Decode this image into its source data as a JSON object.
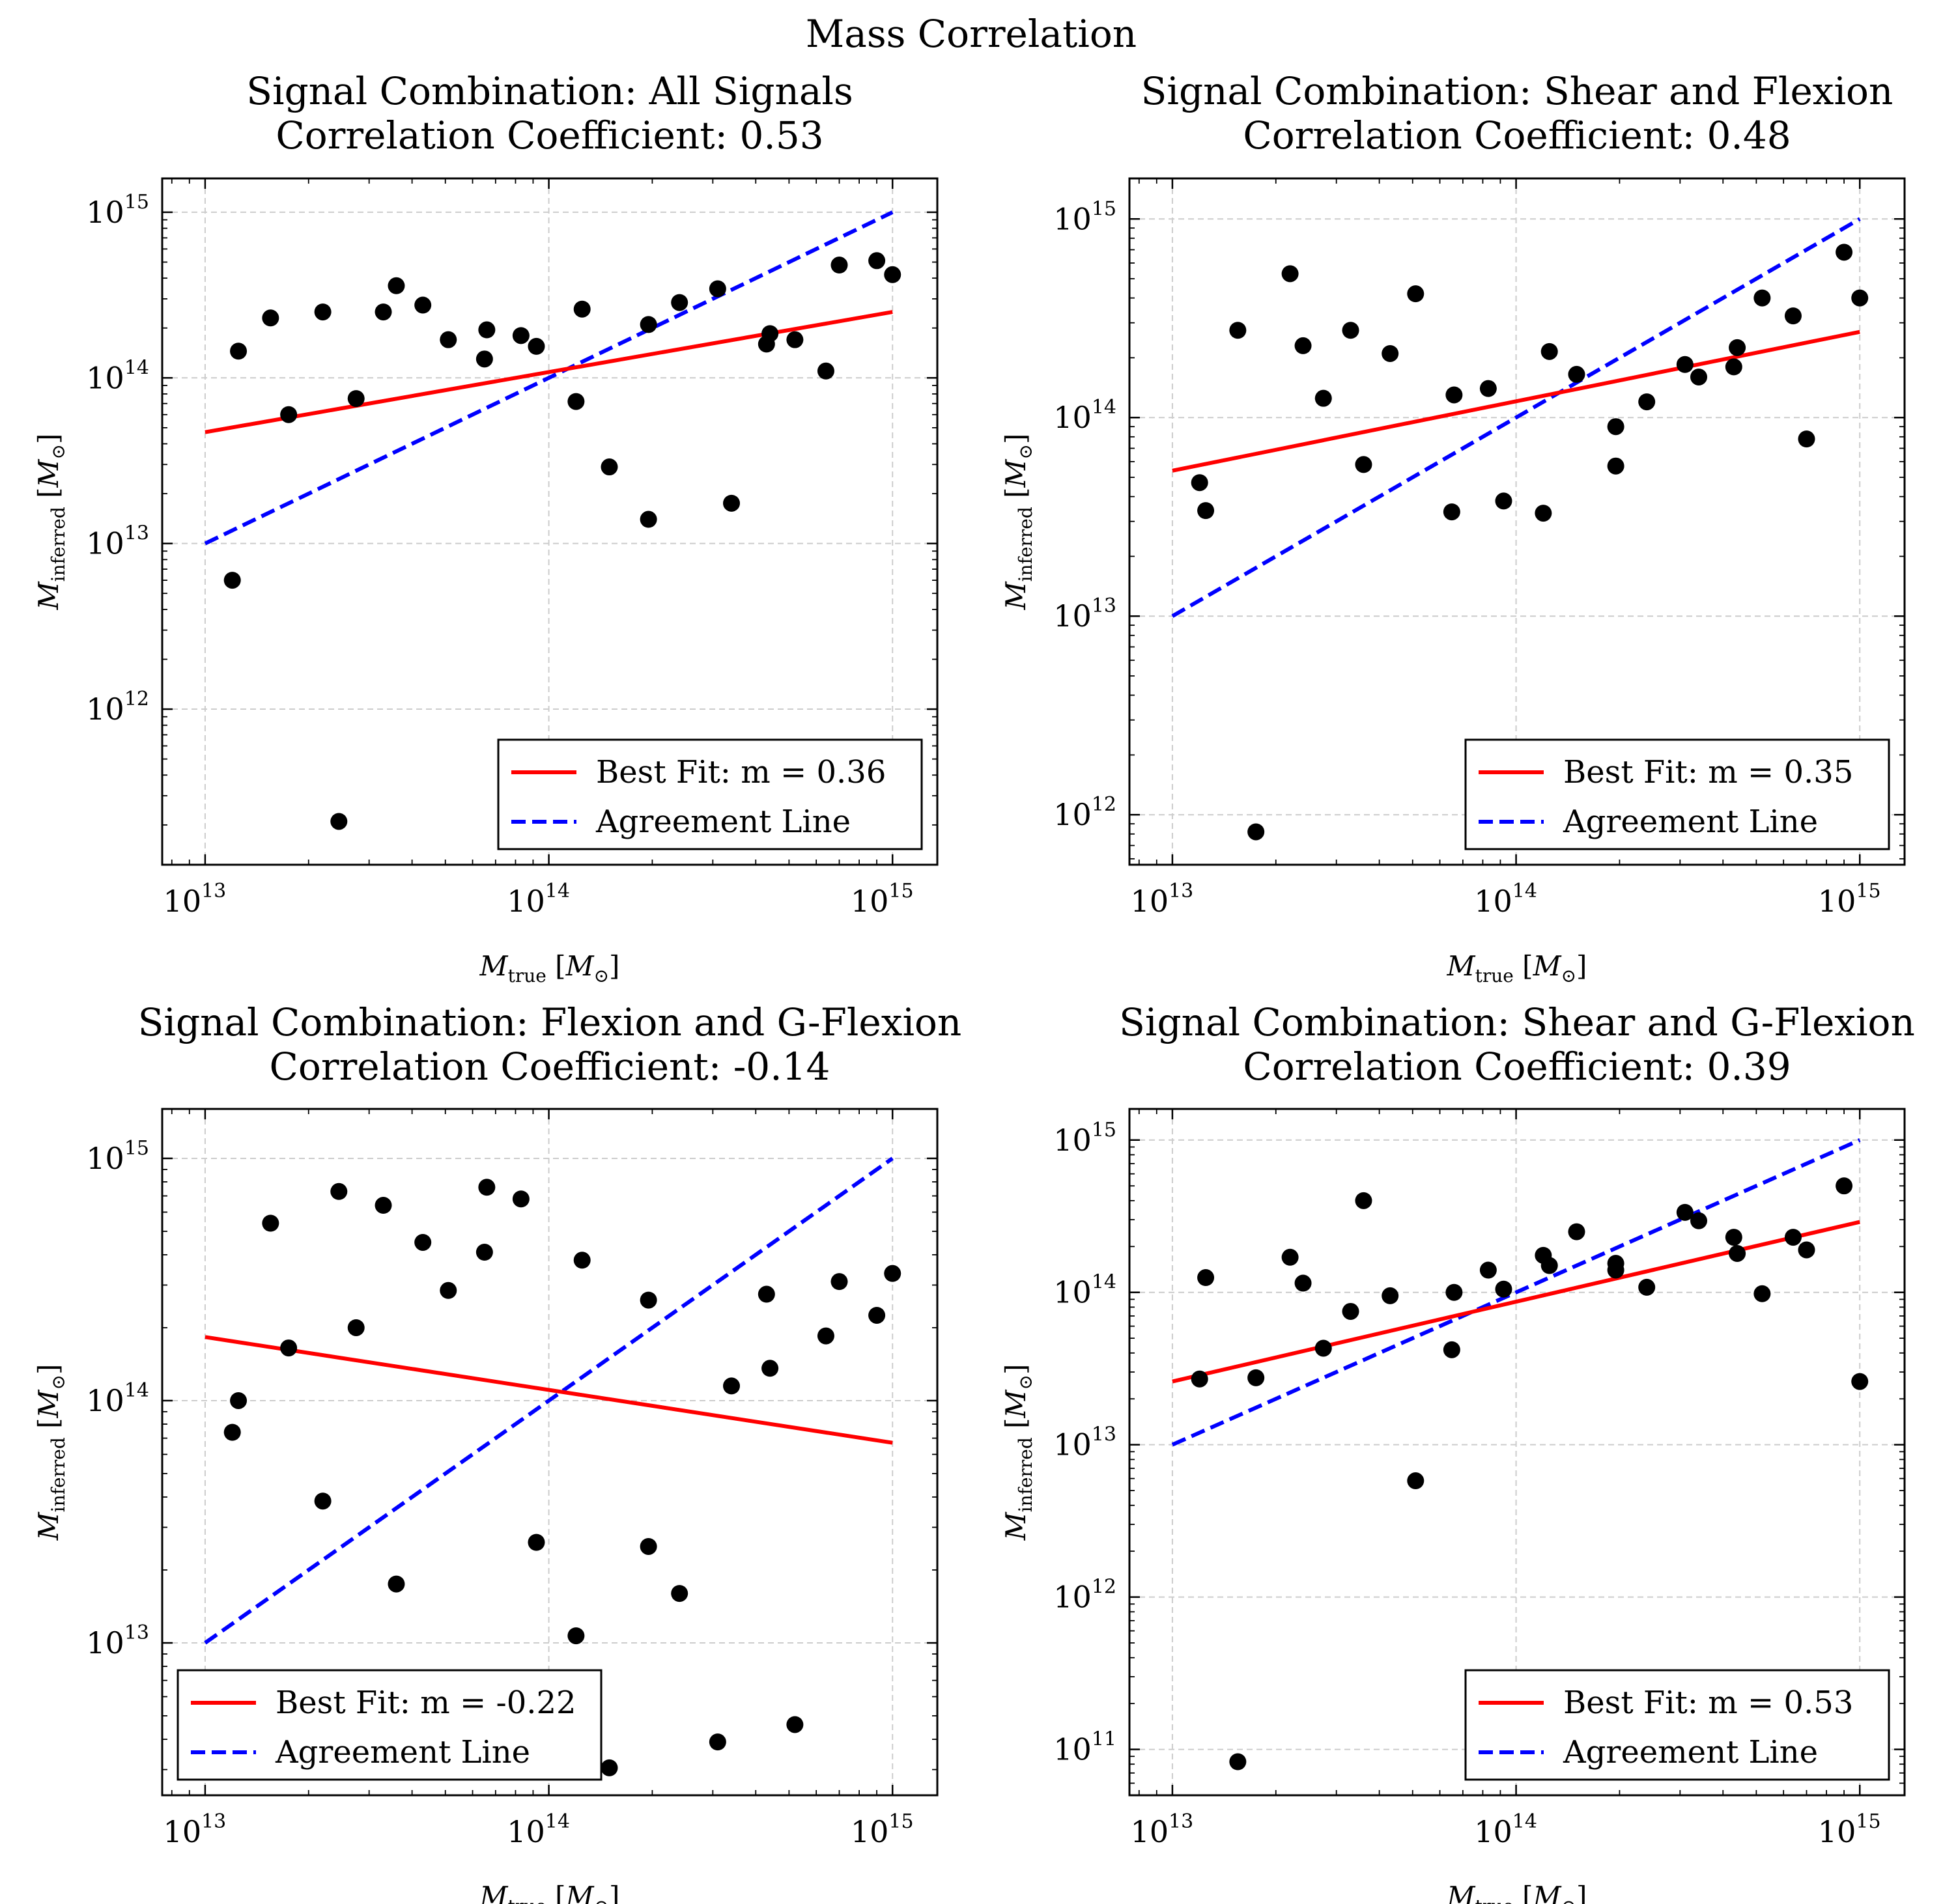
{
  "figure": {
    "title": "Mass Correlation"
  },
  "chart_data": [
    {
      "type": "scatter",
      "title": "Signal Combination: All Signals",
      "subtitle": "Correlation Coefficient: 0.53",
      "xlabel": "M_true [M_⊙]",
      "ylabel": "M_inferred [M_⊙]",
      "xscale": "log",
      "yscale": "log",
      "xlim": [
        7500000000000.0,
        1350000000000000.0
      ],
      "ylim": [
        115000000000.0,
        1600000000000000.0
      ],
      "xticks": [
        {
          "base": "10",
          "exp": "13"
        },
        {
          "base": "10",
          "exp": "14"
        },
        {
          "base": "10",
          "exp": "15"
        }
      ],
      "yticks": [
        {
          "base": "10",
          "exp": "12"
        },
        {
          "base": "10",
          "exp": "13"
        },
        {
          "base": "10",
          "exp": "14"
        },
        {
          "base": "10",
          "exp": "15"
        }
      ],
      "grid": true,
      "legend_position": "lower-right",
      "legend": [
        {
          "label": "Best Fit: m = 0.36",
          "color": "#ff0000",
          "style": "solid"
        },
        {
          "label": "Agreement Line",
          "color": "#0000ff",
          "style": "dashed"
        }
      ],
      "fit_line": {
        "x": [
          10000000000000.0,
          1000000000000000.0
        ],
        "y": [
          47000000000000.0,
          250000000000000.0
        ]
      },
      "agreement_line": {
        "x": [
          10000000000000.0,
          1000000000000000.0
        ],
        "y": [
          10000000000000.0,
          1000000000000000.0
        ]
      },
      "points": [
        [
          12000000000000.0,
          6000000000000.0
        ],
        [
          12500000000000.0,
          145000000000000.0
        ],
        [
          15500000000000.0,
          230000000000000.0
        ],
        [
          17500000000000.0,
          60000000000000.0
        ],
        [
          22000000000000.0,
          250000000000000.0
        ],
        [
          24500000000000.0,
          210000000000.0
        ],
        [
          27500000000000.0,
          75000000000000.0
        ],
        [
          33000000000000.0,
          250000000000000.0
        ],
        [
          36000000000000.0,
          360000000000000.0
        ],
        [
          43000000000000.0,
          275000000000000.0
        ],
        [
          51000000000000.0,
          170000000000000.0
        ],
        [
          65000000000000.0,
          130000000000000.0
        ],
        [
          66000000000000.0,
          195000000000000.0
        ],
        [
          83000000000000.0,
          180000000000000.0
        ],
        [
          92000000000000.0,
          155000000000000.0
        ],
        [
          120000000000000.0,
          72000000000000.0
        ],
        [
          125000000000000.0,
          260000000000000.0
        ],
        [
          150000000000000.0,
          29000000000000.0
        ],
        [
          195000000000000.0,
          14000000000000.0
        ],
        [
          195000000000000.0,
          210000000000000.0
        ],
        [
          240000000000000.0,
          285000000000000.0
        ],
        [
          310000000000000.0,
          345000000000000.0
        ],
        [
          340000000000000.0,
          17500000000000.0
        ],
        [
          430000000000000.0,
          160000000000000.0
        ],
        [
          440000000000000.0,
          185000000000000.0
        ],
        [
          520000000000000.0,
          170000000000000.0
        ],
        [
          640000000000000.0,
          110000000000000.0
        ],
        [
          700000000000000.0,
          480000000000000.0
        ],
        [
          900000000000000.0,
          510000000000000.0
        ],
        [
          1000000000000000.0,
          420000000000000.0
        ]
      ]
    },
    {
      "type": "scatter",
      "title": "Signal Combination: Shear and Flexion",
      "subtitle": "Correlation Coefficient: 0.48",
      "xlabel": "M_true [M_⊙]",
      "ylabel": "M_inferred [M_⊙]",
      "xscale": "log",
      "yscale": "log",
      "xlim": [
        7500000000000.0,
        1350000000000000.0
      ],
      "ylim": [
        560000000000.0,
        1600000000000000.0
      ],
      "xticks": [
        {
          "base": "10",
          "exp": "13"
        },
        {
          "base": "10",
          "exp": "14"
        },
        {
          "base": "10",
          "exp": "15"
        }
      ],
      "yticks": [
        {
          "base": "10",
          "exp": "12"
        },
        {
          "base": "10",
          "exp": "13"
        },
        {
          "base": "10",
          "exp": "14"
        },
        {
          "base": "10",
          "exp": "15"
        }
      ],
      "grid": true,
      "legend_position": "lower-right",
      "legend": [
        {
          "label": "Best Fit: m = 0.35",
          "color": "#ff0000",
          "style": "solid"
        },
        {
          "label": "Agreement Line",
          "color": "#0000ff",
          "style": "dashed"
        }
      ],
      "fit_line": {
        "x": [
          10000000000000.0,
          1000000000000000.0
        ],
        "y": [
          54000000000000.0,
          270000000000000.0
        ]
      },
      "agreement_line": {
        "x": [
          10000000000000.0,
          1000000000000000.0
        ],
        "y": [
          10000000000000.0,
          1000000000000000.0
        ]
      },
      "points": [
        [
          12000000000000.0,
          47000000000000.0
        ],
        [
          12500000000000.0,
          34000000000000.0
        ],
        [
          15500000000000.0,
          275000000000000.0
        ],
        [
          17500000000000.0,
          820000000000.0
        ],
        [
          22000000000000.0,
          530000000000000.0
        ],
        [
          24000000000000.0,
          230000000000000.0
        ],
        [
          27500000000000.0,
          125000000000000.0
        ],
        [
          33000000000000.0,
          275000000000000.0
        ],
        [
          36000000000000.0,
          58000000000000.0
        ],
        [
          43000000000000.0,
          210000000000000.0
        ],
        [
          51000000000000.0,
          420000000000000.0
        ],
        [
          65000000000000.0,
          33500000000000.0
        ],
        [
          66000000000000.0,
          130000000000000.0
        ],
        [
          83000000000000.0,
          140000000000000.0
        ],
        [
          92000000000000.0,
          38000000000000.0
        ],
        [
          120000000000000.0,
          33000000000000.0
        ],
        [
          125000000000000.0,
          215000000000000.0
        ],
        [
          150000000000000.0,
          165000000000000.0
        ],
        [
          195000000000000.0,
          57000000000000.0
        ],
        [
          195000000000000.0,
          90000000000000.0
        ],
        [
          240000000000000.0,
          120000000000000.0
        ],
        [
          310000000000000.0,
          185000000000000.0
        ],
        [
          340000000000000.0,
          160000000000000.0
        ],
        [
          430000000000000.0,
          180000000000000.0
        ],
        [
          440000000000000.0,
          225000000000000.0
        ],
        [
          520000000000000.0,
          400000000000000.0
        ],
        [
          640000000000000.0,
          325000000000000.0
        ],
        [
          700000000000000.0,
          78000000000000.0
        ],
        [
          900000000000000.0,
          680000000000000.0
        ],
        [
          1000000000000000.0,
          400000000000000.0
        ]
      ]
    },
    {
      "type": "scatter",
      "title": "Signal Combination: Flexion and G-Flexion",
      "subtitle": "Correlation Coefficient: -0.14",
      "xlabel": "M_true [M_⊙]",
      "ylabel": "M_inferred [M_⊙]",
      "xscale": "log",
      "yscale": "log",
      "xlim": [
        7500000000000.0,
        1350000000000000.0
      ],
      "ylim": [
        2350000000000.0,
        1600000000000000.0
      ],
      "xticks": [
        {
          "base": "10",
          "exp": "13"
        },
        {
          "base": "10",
          "exp": "14"
        },
        {
          "base": "10",
          "exp": "15"
        }
      ],
      "yticks": [
        {
          "base": "10",
          "exp": "13"
        },
        {
          "base": "10",
          "exp": "14"
        },
        {
          "base": "10",
          "exp": "15"
        }
      ],
      "grid": true,
      "legend_position": "lower-left",
      "legend": [
        {
          "label": "Best Fit: m = -0.22",
          "color": "#ff0000",
          "style": "solid"
        },
        {
          "label": "Agreement Line",
          "color": "#0000ff",
          "style": "dashed"
        }
      ],
      "fit_line": {
        "x": [
          10000000000000.0,
          1000000000000000.0
        ],
        "y": [
          183000000000000.0,
          67000000000000.0
        ]
      },
      "agreement_line": {
        "x": [
          10000000000000.0,
          1000000000000000.0
        ],
        "y": [
          10000000000000.0,
          1000000000000000.0
        ]
      },
      "points": [
        [
          12000000000000.0,
          74000000000000.0
        ],
        [
          12500000000000.0,
          100000000000000.0
        ],
        [
          15500000000000.0,
          540000000000000.0
        ],
        [
          17500000000000.0,
          165000000000000.0
        ],
        [
          22000000000000.0,
          38500000000000.0
        ],
        [
          24500000000000.0,
          730000000000000.0
        ],
        [
          27500000000000.0,
          200000000000000.0
        ],
        [
          33000000000000.0,
          640000000000000.0
        ],
        [
          36000000000000.0,
          17500000000000.0
        ],
        [
          43000000000000.0,
          450000000000000.0
        ],
        [
          51000000000000.0,
          285000000000000.0
        ],
        [
          65000000000000.0,
          410000000000000.0
        ],
        [
          66000000000000.0,
          760000000000000.0
        ],
        [
          83000000000000.0,
          680000000000000.0
        ],
        [
          92000000000000.0,
          26000000000000.0
        ],
        [
          120000000000000.0,
          10700000000000.0
        ],
        [
          125000000000000.0,
          380000000000000.0
        ],
        [
          150000000000000.0,
          3050000000000.0
        ],
        [
          195000000000000.0,
          25000000000000.0
        ],
        [
          195000000000000.0,
          260000000000000.0
        ],
        [
          240000000000000.0,
          16000000000000.0
        ],
        [
          310000000000000.0,
          3900000000000.0
        ],
        [
          340000000000000.0,
          115000000000000.0
        ],
        [
          430000000000000.0,
          275000000000000.0
        ],
        [
          440000000000000.0,
          136000000000000.0
        ],
        [
          520000000000000.0,
          4600000000000.0
        ],
        [
          640000000000000.0,
          185000000000000.0
        ],
        [
          700000000000000.0,
          310000000000000.0
        ],
        [
          900000000000000.0,
          225000000000000.0
        ],
        [
          1000000000000000.0,
          335000000000000.0
        ]
      ]
    },
    {
      "type": "scatter",
      "title": "Signal Combination: Shear and G-Flexion",
      "subtitle": "Correlation Coefficient: 0.39",
      "xlabel": "M_true [M_⊙]",
      "ylabel": "M_inferred [M_⊙]",
      "xscale": "log",
      "yscale": "log",
      "xlim": [
        7500000000000.0,
        1350000000000000.0
      ],
      "ylim": [
        50000000000.0,
        1600000000000000.0
      ],
      "xticks": [
        {
          "base": "10",
          "exp": "13"
        },
        {
          "base": "10",
          "exp": "14"
        },
        {
          "base": "10",
          "exp": "15"
        }
      ],
      "yticks": [
        {
          "base": "10",
          "exp": "11"
        },
        {
          "base": "10",
          "exp": "12"
        },
        {
          "base": "10",
          "exp": "13"
        },
        {
          "base": "10",
          "exp": "14"
        },
        {
          "base": "10",
          "exp": "15"
        }
      ],
      "grid": true,
      "legend_position": "lower-right",
      "legend": [
        {
          "label": "Best Fit: m = 0.53",
          "color": "#ff0000",
          "style": "solid"
        },
        {
          "label": "Agreement Line",
          "color": "#0000ff",
          "style": "dashed"
        }
      ],
      "fit_line": {
        "x": [
          10000000000000.0,
          1000000000000000.0
        ],
        "y": [
          26000000000000.0,
          290000000000000.0
        ]
      },
      "agreement_line": {
        "x": [
          10000000000000.0,
          1000000000000000.0
        ],
        "y": [
          10000000000000.0,
          1000000000000000.0
        ]
      },
      "points": [
        [
          12000000000000.0,
          27000000000000.0
        ],
        [
          12500000000000.0,
          125000000000000.0
        ],
        [
          15500000000000.0,
          83000000000.0
        ],
        [
          17500000000000.0,
          27500000000000.0
        ],
        [
          22000000000000.0,
          170000000000000.0
        ],
        [
          24000000000000.0,
          115000000000000.0
        ],
        [
          27500000000000.0,
          43000000000000.0
        ],
        [
          33000000000000.0,
          75000000000000.0
        ],
        [
          36000000000000.0,
          400000000000000.0
        ],
        [
          43000000000000.0,
          95000000000000.0
        ],
        [
          51000000000000.0,
          5800000000000.0
        ],
        [
          65000000000000.0,
          42000000000000.0
        ],
        [
          66000000000000.0,
          100000000000000.0
        ],
        [
          83000000000000.0,
          140000000000000.0
        ],
        [
          92000000000000.0,
          105000000000000.0
        ],
        [
          120000000000000.0,
          175000000000000.0
        ],
        [
          125000000000000.0,
          150000000000000.0
        ],
        [
          150000000000000.0,
          250000000000000.0
        ],
        [
          195000000000000.0,
          140000000000000.0
        ],
        [
          195000000000000.0,
          155000000000000.0
        ],
        [
          240000000000000.0,
          108000000000000.0
        ],
        [
          310000000000000.0,
          335000000000000.0
        ],
        [
          340000000000000.0,
          295000000000000.0
        ],
        [
          430000000000000.0,
          230000000000000.0
        ],
        [
          440000000000000.0,
          180000000000000.0
        ],
        [
          520000000000000.0,
          98000000000000.0
        ],
        [
          640000000000000.0,
          230000000000000.0
        ],
        [
          700000000000000.0,
          190000000000000.0
        ],
        [
          900000000000000.0,
          500000000000000.0
        ],
        [
          1000000000000000.0,
          26000000000000.0
        ]
      ]
    }
  ]
}
